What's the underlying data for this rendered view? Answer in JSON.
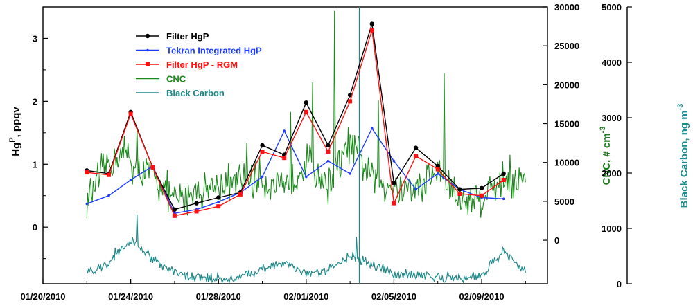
{
  "chart_data": {
    "type": "line",
    "x_axis": {
      "ticks": [
        "01/20/2010",
        "01/24/2010",
        "01/28/2010",
        "02/01/2010",
        "02/05/2010",
        "02/09/2010"
      ],
      "range": [
        "01/20/2010",
        "02/12/2010"
      ]
    },
    "y_axis_left": {
      "title": "HgP, ppqv",
      "title_base": "Hg",
      "title_sup": "P",
      "title_rest": ", ppqv",
      "ticks": [
        "0",
        "1",
        "2",
        "3"
      ],
      "range": [
        -0.9,
        3.5
      ]
    },
    "y_axis_right_cnc": {
      "title": "CNC, # cm-3",
      "title_base": "CNC, # cm",
      "title_sup": "-3",
      "ticks": [
        "0",
        "5000",
        "10000",
        "15000",
        "20000",
        "25000",
        "30000"
      ],
      "range": [
        -5600,
        30000
      ],
      "color": "#1a7a1a"
    },
    "y_axis_right_bc": {
      "title": "Black Carbon, ng m-3",
      "title_base": "Black Carbon, ng m",
      "title_sup": "-3",
      "ticks": [
        "0",
        "1000",
        "2000",
        "3000",
        "4000",
        "5000"
      ],
      "range": [
        0,
        5000
      ],
      "color": "#1e8a8a"
    },
    "series": [
      {
        "name": "Filter HgP",
        "color": "#000000",
        "marker": "circle",
        "axis": "left",
        "x": [
          "01/22/2010",
          "01/23/2010",
          "01/24/2010",
          "01/25/2010",
          "01/26/2010",
          "01/27/2010",
          "01/28/2010",
          "01/29/2010",
          "01/30/2010",
          "01/31/2010",
          "02/01/2010",
          "02/02/2010",
          "02/03/2010",
          "02/04/2010",
          "02/05/2010",
          "02/06/2010",
          "02/07/2010",
          "02/08/2010",
          "02/09/2010",
          "02/10/2010"
        ],
        "y": [
          0.9,
          0.85,
          1.83,
          0.95,
          0.28,
          0.38,
          0.47,
          0.55,
          1.3,
          1.15,
          1.98,
          1.3,
          2.1,
          3.23,
          0.7,
          1.26,
          0.97,
          0.6,
          0.62,
          0.85
        ]
      },
      {
        "name": "Tekran Integrated HgP",
        "color": "#1e3cff",
        "marker": "dot",
        "axis": "left",
        "x": [
          "01/22/2010",
          "01/23/2010",
          "01/24/2010",
          "01/25/2010",
          "01/26/2010",
          "01/27/2010",
          "01/28/2010",
          "01/29/2010",
          "01/30/2010",
          "01/31/2010",
          "02/01/2010",
          "02/02/2010",
          "02/03/2010",
          "02/04/2010",
          "02/05/2010",
          "02/06/2010",
          "02/07/2010",
          "02/08/2010",
          "02/09/2010",
          "02/10/2010"
        ],
        "y": [
          0.37,
          0.5,
          0.75,
          0.97,
          0.22,
          0.28,
          0.4,
          0.55,
          0.8,
          1.53,
          0.8,
          1.05,
          0.85,
          1.57,
          1.05,
          0.6,
          0.85,
          0.6,
          0.47,
          0.45
        ]
      },
      {
        "name": "Filter HgP - RGM",
        "color": "#ff1010",
        "marker": "square",
        "axis": "left",
        "x": [
          "01/22/2010",
          "01/23/2010",
          "01/24/2010",
          "01/25/2010",
          "01/26/2010",
          "01/27/2010",
          "01/28/2010",
          "01/29/2010",
          "01/30/2010",
          "01/31/2010",
          "02/01/2010",
          "02/02/2010",
          "02/03/2010",
          "02/04/2010",
          "02/05/2010",
          "02/06/2010",
          "02/07/2010",
          "02/08/2010",
          "02/09/2010",
          "02/10/2010"
        ],
        "y": [
          0.87,
          0.83,
          1.8,
          0.95,
          0.18,
          0.25,
          0.33,
          0.52,
          1.2,
          1.1,
          1.83,
          1.2,
          2.0,
          3.13,
          0.38,
          1.13,
          0.92,
          0.53,
          0.5,
          0.75
        ]
      },
      {
        "name": "CNC",
        "color": "#1a8a1a",
        "axis": "right_cnc",
        "x_start": "01/22/2010",
        "x_end": "02/11/2010",
        "samples_per_day": 24,
        "anchors": [
          [
            "01/22/2010",
            5000
          ],
          [
            "01/23/2010",
            10000
          ],
          [
            "01/24/2010",
            11500
          ],
          [
            "01/24/2010",
            9000
          ],
          [
            "01/25/2010",
            8500
          ],
          [
            "01/26/2010",
            5000
          ],
          [
            "01/27/2010",
            6500
          ],
          [
            "01/28/2010",
            7000
          ],
          [
            "01/29/2010",
            7500
          ],
          [
            "01/30/2010",
            8000
          ],
          [
            "01/31/2010",
            6000
          ],
          [
            "02/01/2010",
            10500
          ],
          [
            "02/02/2010",
            7000
          ],
          [
            "02/03/2010",
            12500
          ],
          [
            "02/04/2010",
            8000
          ],
          [
            "02/05/2010",
            7000
          ],
          [
            "02/06/2010",
            6500
          ],
          [
            "02/07/2010",
            9000
          ],
          [
            "02/08/2010",
            5000
          ],
          [
            "02/09/2010",
            5500
          ],
          [
            "02/10/2010",
            8000
          ],
          [
            "02/11/2010",
            7500
          ]
        ],
        "spikes": [
          [
            "01/24/2010",
            14500
          ],
          [
            "01/29/2010",
            12500
          ],
          [
            "01/31/2010",
            16500
          ],
          [
            "02/01/2010",
            20300
          ],
          [
            "02/02/2010",
            29500
          ],
          [
            "02/04/2010",
            18000
          ],
          [
            "02/07/2010",
            21500
          ],
          [
            "02/10/2010",
            11000
          ]
        ]
      },
      {
        "name": "Black Carbon",
        "color": "#1e8a8a",
        "axis": "right_bc",
        "x_start": "01/22/2010",
        "x_end": "02/11/2010",
        "samples_per_day": 24,
        "anchors": [
          [
            "01/22/2010",
            220
          ],
          [
            "01/23/2010",
            350
          ],
          [
            "01/24/2010",
            800
          ],
          [
            "01/25/2010",
            450
          ],
          [
            "01/26/2010",
            200
          ],
          [
            "01/27/2010",
            120
          ],
          [
            "01/28/2010",
            100
          ],
          [
            "01/29/2010",
            120
          ],
          [
            "01/30/2010",
            250
          ],
          [
            "01/31/2010",
            380
          ],
          [
            "02/01/2010",
            200
          ],
          [
            "02/02/2010",
            250
          ],
          [
            "02/03/2010",
            500
          ],
          [
            "02/04/2010",
            350
          ],
          [
            "02/05/2010",
            200
          ],
          [
            "02/06/2010",
            150
          ],
          [
            "02/07/2010",
            130
          ],
          [
            "02/08/2010",
            100
          ],
          [
            "02/09/2010",
            150
          ],
          [
            "02/10/2010",
            600
          ],
          [
            "02/11/2010",
            200
          ]
        ],
        "spikes": [
          [
            "01/24/2010",
            1250
          ],
          [
            "02/03/2010",
            850
          ],
          [
            "01/23/2010",
            650
          ]
        ]
      }
    ],
    "legend": {
      "placement": "top-left",
      "entries": [
        "Filter HgP",
        "Tekran Integrated HgP",
        "Filter HgP - RGM",
        "CNC",
        "Black Carbon"
      ]
    }
  }
}
